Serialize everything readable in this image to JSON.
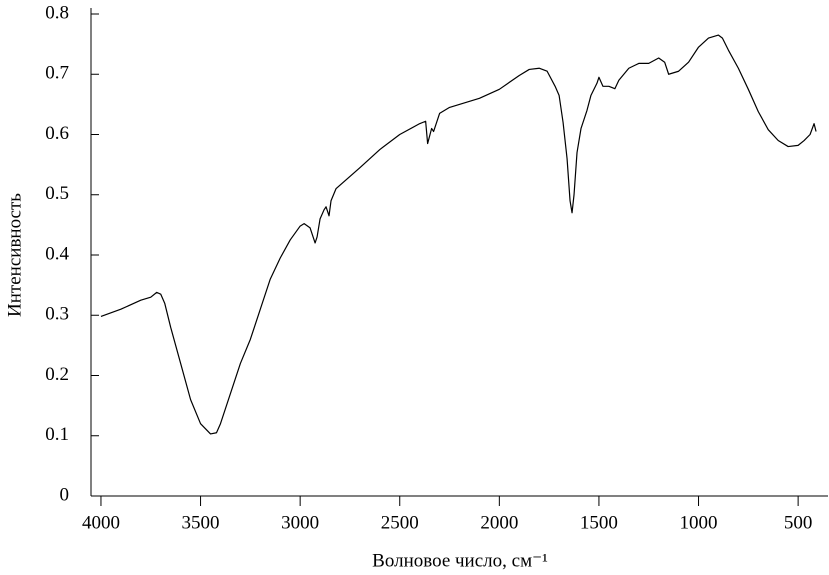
{
  "chart_data": {
    "type": "line",
    "xlabel": "Волновое число, см⁻¹",
    "ylabel": "Интенсивность",
    "color": "#000000",
    "xlim": [
      4050,
      350
    ],
    "ylim": [
      0,
      0.8
    ],
    "xticks": [
      4000,
      3500,
      3000,
      2500,
      2000,
      1500,
      1000,
      500
    ],
    "yticks": [
      0,
      0.1,
      0.2,
      0.3,
      0.4,
      0.5,
      0.6,
      0.7,
      0.8
    ],
    "x": [
      4000,
      3900,
      3800,
      3750,
      3720,
      3700,
      3680,
      3650,
      3600,
      3550,
      3500,
      3450,
      3420,
      3400,
      3350,
      3300,
      3250,
      3200,
      3150,
      3100,
      3050,
      3000,
      2980,
      2950,
      2925,
      2915,
      2900,
      2880,
      2870,
      2855,
      2845,
      2820,
      2700,
      2600,
      2500,
      2400,
      2370,
      2360,
      2340,
      2330,
      2300,
      2250,
      2100,
      2000,
      1900,
      1850,
      1800,
      1760,
      1720,
      1700,
      1680,
      1660,
      1645,
      1635,
      1625,
      1610,
      1590,
      1560,
      1540,
      1510,
      1500,
      1480,
      1450,
      1420,
      1400,
      1350,
      1300,
      1250,
      1200,
      1170,
      1150,
      1100,
      1050,
      1000,
      950,
      900,
      880,
      850,
      800,
      750,
      700,
      650,
      600,
      550,
      500,
      470,
      440,
      420,
      410
    ],
    "values": [
      0.298,
      0.31,
      0.325,
      0.33,
      0.338,
      0.335,
      0.32,
      0.28,
      0.22,
      0.16,
      0.12,
      0.103,
      0.105,
      0.12,
      0.17,
      0.22,
      0.26,
      0.31,
      0.36,
      0.395,
      0.425,
      0.448,
      0.452,
      0.445,
      0.42,
      0.43,
      0.46,
      0.475,
      0.48,
      0.465,
      0.49,
      0.51,
      0.545,
      0.575,
      0.6,
      0.618,
      0.622,
      0.585,
      0.61,
      0.605,
      0.635,
      0.645,
      0.66,
      0.675,
      0.698,
      0.708,
      0.71,
      0.705,
      0.68,
      0.665,
      0.62,
      0.56,
      0.49,
      0.47,
      0.5,
      0.57,
      0.61,
      0.64,
      0.665,
      0.685,
      0.695,
      0.68,
      0.68,
      0.676,
      0.69,
      0.71,
      0.718,
      0.718,
      0.727,
      0.72,
      0.7,
      0.705,
      0.72,
      0.745,
      0.76,
      0.765,
      0.76,
      0.74,
      0.71,
      0.675,
      0.638,
      0.608,
      0.59,
      0.58,
      0.582,
      0.59,
      0.6,
      0.618,
      0.605
    ]
  }
}
